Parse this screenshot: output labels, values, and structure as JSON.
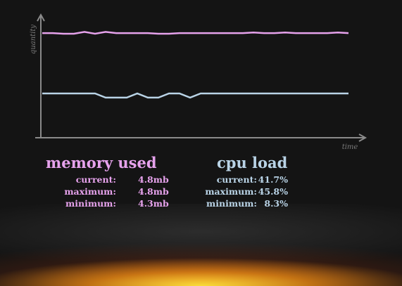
{
  "chart_data": {
    "type": "line",
    "x_label": "time",
    "y_label": "quantity",
    "ylim": [
      0,
      100
    ],
    "series": [
      {
        "name": "memory used",
        "color": "#e6a2ec",
        "values": [
          87,
          87,
          86.5,
          86.5,
          88,
          86.5,
          88,
          87,
          87,
          87,
          87,
          86.5,
          86.5,
          87,
          87,
          87,
          87,
          87,
          87,
          87,
          87.5,
          87,
          87,
          87.5,
          87,
          87,
          87,
          87,
          87.5,
          87
        ]
      },
      {
        "name": "cpu load",
        "color": "#b9d3e6",
        "values": [
          36.5,
          36.5,
          36.5,
          36.5,
          36.5,
          36.5,
          33,
          33,
          33,
          36.5,
          33,
          33,
          36.5,
          36.5,
          33,
          36.5,
          36.5,
          36.5,
          36.5,
          36.5,
          36.5,
          36.5,
          36.5,
          36.5,
          36.5,
          36.5,
          36.5,
          36.5,
          36.5,
          36.5
        ]
      }
    ]
  },
  "stats": [
    [
      {
        "label": "current:",
        "value": "4.8mb"
      },
      {
        "label": "maximum:",
        "value": "4.8mb"
      },
      {
        "label": "minimum:",
        "value": "4.3mb"
      }
    ],
    [
      {
        "label": "current:",
        "value": "41.7%"
      },
      {
        "label": "maximum:",
        "value": "45.8%"
      },
      {
        "label": "minimum:",
        "value": "8.3%"
      }
    ]
  ]
}
